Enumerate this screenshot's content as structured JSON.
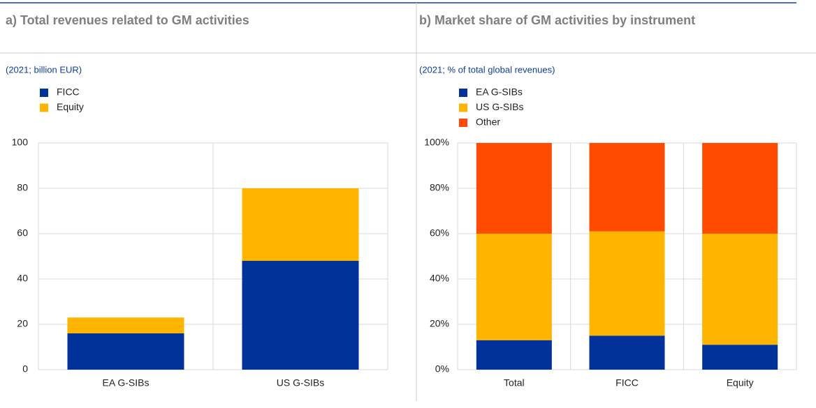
{
  "chart_data": [
    {
      "type": "bar",
      "stacked": true,
      "title": "a) Total revenues related to GM activities",
      "subtitle": "(2021; billion EUR)",
      "categories": [
        "EA G-SIBs",
        "US G-SIBs"
      ],
      "series": [
        {
          "name": "FICC",
          "color": "#003299",
          "values": [
            16,
            48
          ]
        },
        {
          "name": "Equity",
          "color": "#ffb400",
          "values": [
            7,
            32
          ]
        }
      ],
      "ylim": [
        0,
        100
      ],
      "yticks": [
        0,
        20,
        40,
        60,
        80,
        100
      ],
      "grid": true
    },
    {
      "type": "bar",
      "stacked": true,
      "title": "b) Market share of GM activities by instrument",
      "subtitle": "(2021; % of total global revenues)",
      "categories": [
        "Total",
        "FICC",
        "Equity"
      ],
      "series": [
        {
          "name": "EA G-SIBs",
          "color": "#003299",
          "values": [
            13,
            15,
            11
          ]
        },
        {
          "name": "US G-SIBs",
          "color": "#ffb400",
          "values": [
            47,
            46,
            49
          ]
        },
        {
          "name": "Other",
          "color": "#ff4b00",
          "values": [
            40,
            39,
            40
          ]
        }
      ],
      "ylim": [
        0,
        100
      ],
      "yticks": [
        {
          "value": 0,
          "label": "0%"
        },
        {
          "value": 20,
          "label": "20%"
        },
        {
          "value": 40,
          "label": "40%"
        },
        {
          "value": 60,
          "label": "60%"
        },
        {
          "value": 80,
          "label": "80%"
        },
        {
          "value": 100,
          "label": "100%"
        }
      ],
      "grid": true
    }
  ]
}
